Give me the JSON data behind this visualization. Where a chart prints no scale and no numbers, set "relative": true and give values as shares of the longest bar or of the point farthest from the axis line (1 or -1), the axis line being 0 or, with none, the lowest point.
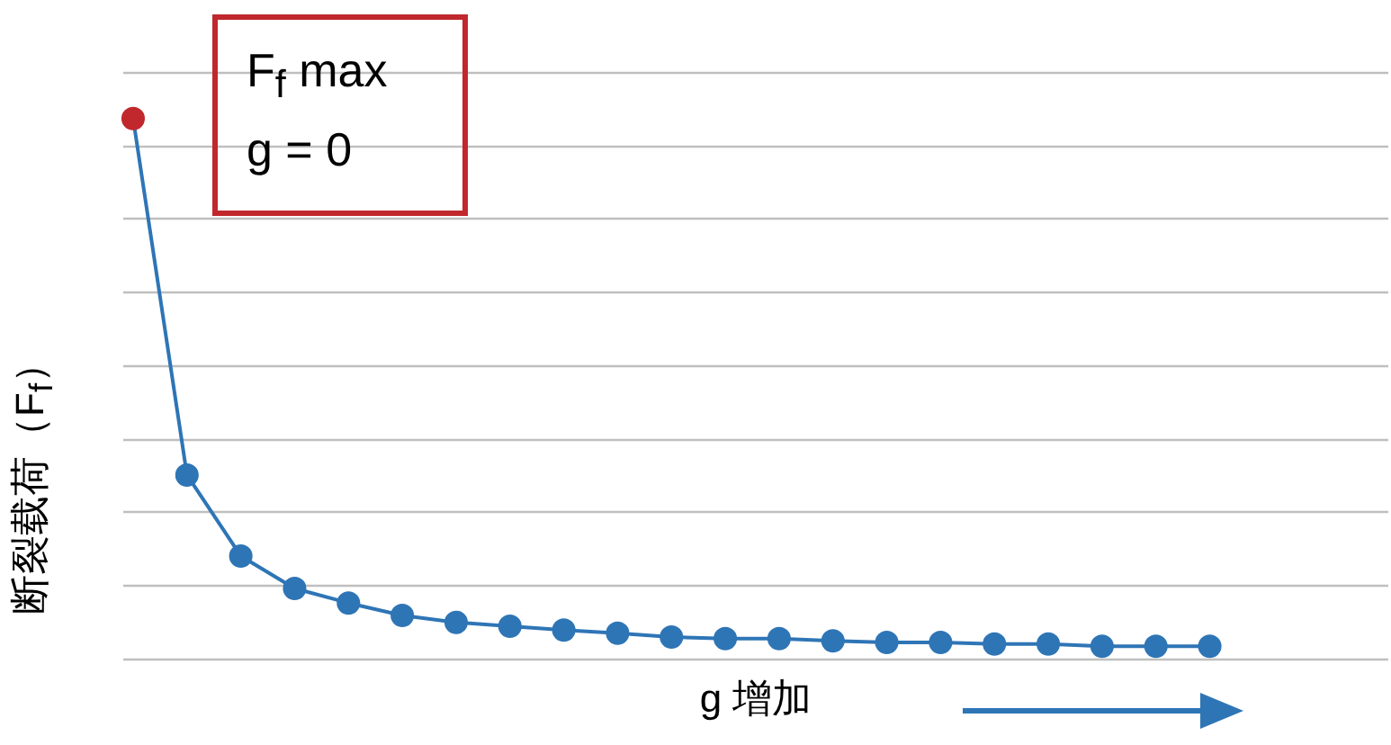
{
  "chart_data": {
    "type": "line",
    "relative": true,
    "xlabel": "g 增加",
    "ylabel": "断裂载荷（F$_{f}$）",
    "categories": [
      null,
      null,
      null,
      null,
      null,
      null,
      null,
      null,
      null,
      null,
      null,
      null,
      null,
      null,
      null,
      null,
      null,
      null,
      null,
      null,
      null
    ],
    "series": [
      {
        "color": "#2e75b6",
        "colors": [
          "#c0282d",
          "#2e75b6",
          "#2e75b6",
          "#2e75b6",
          "#2e75b6",
          "#2e75b6",
          "#2e75b6",
          "#2e75b6",
          "#2e75b6",
          "#2e75b6",
          "#2e75b6",
          "#2e75b6",
          "#2e75b6",
          "#2e75b6",
          "#2e75b6",
          "#2e75b6",
          "#2e75b6",
          "#2e75b6",
          "#2e75b6",
          "#2e75b6",
          "#2e75b6"
        ],
        "values": [
          1,
          0.34,
          0.19,
          0.13,
          0.103,
          0.08,
          0.067,
          0.06,
          0.053,
          0.047,
          0.04,
          0.037,
          0.037,
          0.033,
          0.03,
          0.03,
          0.027,
          0.027,
          0.023,
          0.023,
          0.023
        ]
      }
    ],
    "annotations": [
      "F$_{f}$ max\ng = 0"
    ],
    "grid": "y",
    "marker": "circle",
    "line_style": "solid"
  }
}
